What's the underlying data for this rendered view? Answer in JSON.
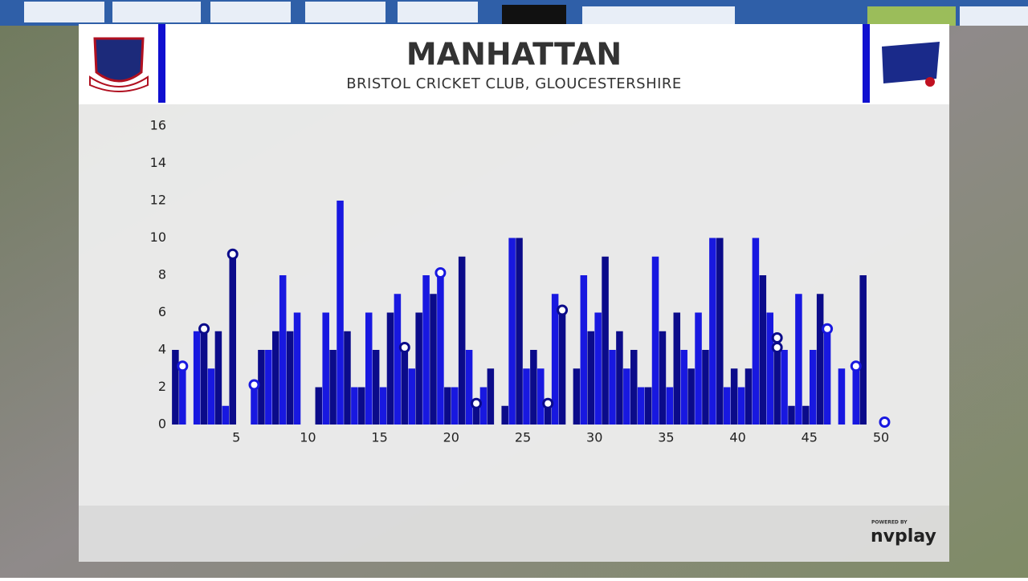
{
  "header": {
    "title": "MANHATTAN",
    "subtitle": "BRISTOL CRICKET CLUB, GLOUCESTERSHIRE"
  },
  "chart_data": {
    "type": "bar",
    "xlim": [
      0,
      51
    ],
    "xticks": [
      5,
      10,
      15,
      20,
      25,
      30,
      35,
      40,
      45,
      50
    ],
    "ylim": [
      0,
      16
    ],
    "yticks": [
      0,
      2,
      4,
      6,
      8,
      10,
      12,
      14,
      16
    ],
    "series": [
      {
        "color": "#0b0b8a",
        "values": [
          4,
          0,
          5,
          5,
          9,
          0,
          4,
          5,
          5,
          0,
          2,
          4,
          5,
          2,
          4,
          6,
          4,
          6,
          7,
          2,
          9,
          1,
          3,
          1,
          10,
          4,
          1,
          6,
          3,
          5,
          9,
          5,
          4,
          2,
          5,
          6,
          3,
          4,
          10,
          3,
          3,
          8,
          4,
          1,
          1,
          7,
          0,
          0,
          8,
          0
        ],
        "wickets": [
          3,
          5,
          17,
          22,
          27,
          28,
          43,
          43
        ]
      },
      {
        "color": "#1818e0",
        "values": [
          3,
          5,
          3,
          1,
          0,
          2,
          4,
          8,
          6,
          0,
          6,
          12,
          2,
          6,
          2,
          7,
          3,
          8,
          8,
          2,
          4,
          2,
          0,
          10,
          3,
          3,
          7,
          0,
          8,
          6,
          4,
          3,
          2,
          9,
          2,
          4,
          6,
          10,
          2,
          2,
          10,
          6,
          4,
          7,
          4,
          5,
          3,
          3,
          0,
          0
        ],
        "wickets": [
          1,
          6,
          19,
          46,
          48,
          50
        ]
      }
    ]
  },
  "footer": {
    "powered": "POWERED BY",
    "brand": "nvplay"
  }
}
